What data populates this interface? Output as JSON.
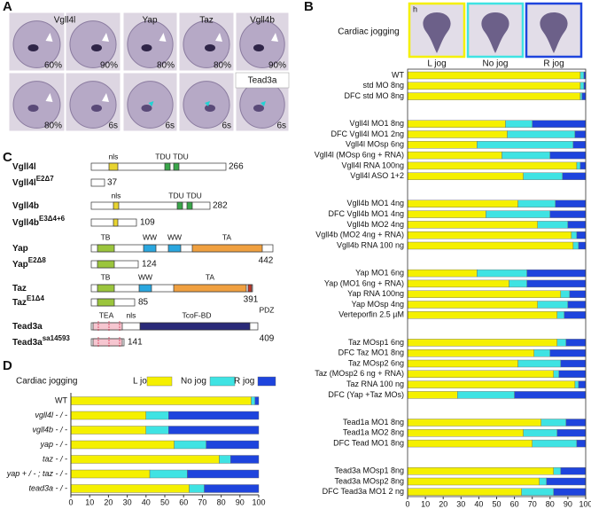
{
  "panel_labels": [
    "A",
    "B",
    "C",
    "D"
  ],
  "panel_a": {
    "headers": [
      "Vgll4l",
      "Yap",
      "Taz",
      "Vgll4b",
      "Tead3a"
    ],
    "annotations": [
      "60%",
      "90%",
      "80%",
      "80%",
      "90%",
      "80%",
      "6s",
      "6s",
      "6s",
      "6s"
    ]
  },
  "panel_c": {
    "rows": [
      {
        "name": "Vgll4l",
        "length": 266,
        "domains": [
          "nls",
          "TDU",
          "TDU"
        ]
      },
      {
        "name": "Vgll4l",
        "sup": "E2Δ7",
        "length": 37
      },
      {
        "name": "Vgll4b",
        "length": 282,
        "domains": [
          "nls",
          "TDU",
          "TDU"
        ]
      },
      {
        "name": "Vgll4b",
        "sup": "E3Δ4+6",
        "length": 109
      },
      {
        "name": "Yap",
        "length": 442,
        "domains": [
          "TB",
          "WW",
          "WW",
          "TA"
        ]
      },
      {
        "name": "Yap",
        "sup": "E2Δ8",
        "length": 124
      },
      {
        "name": "Taz",
        "length": 391,
        "domains": [
          "TB",
          "WW",
          "TA",
          "PDZ"
        ]
      },
      {
        "name": "Taz",
        "sup": "E1Δ4",
        "length": 85
      },
      {
        "name": "Tead3a",
        "length": 409,
        "domains": [
          "TEA",
          "nls",
          "TcoF-BD"
        ]
      },
      {
        "name": "Tead3a",
        "sup": "sa14593",
        "length": 141
      }
    ]
  },
  "chart_data": [
    {
      "type": "bar",
      "legend_title": "Cardiac jogging",
      "image_marker": "h",
      "categories": [
        "WT",
        "std MO 8ng",
        "DFC std MO 8ng",
        "Vgll4l MO1 8ng",
        "DFC Vgll4l MO1 2ng",
        "Vgll4l MOsp 6ng",
        "Vgll4l (MOsp 6ng + RNA)",
        "Vgll4l RNA 100ng",
        "Vgll4l ASO 1+2",
        "Vgll4b MO1 4ng",
        "DFC Vgll4b MO1 4ng",
        "Vgll4b MO2 4ng",
        "Vgll4b (MO2 4ng + RNA)",
        "Vgll4b RNA 100 ng",
        "Yap MO1 6ng",
        "Yap (MO1 6ng + RNA)",
        "Yap RNA 100ng",
        "Yap MOsp 4ng",
        "Verteporfin 2.5 µM",
        "Taz MOsp1 6ng",
        "DFC Taz MO1 8ng",
        "Taz MOsp2 6ng",
        "Taz (MOsp2 6 ng + RNA)",
        "Taz RNA 100 ng",
        "DFC (Yap +Taz MOs)",
        "Tead1a MO1 8ng",
        "Tead1a MO2 8ng",
        "DFC Tead MO1 8ng",
        "Tead3a MOsp1 8ng",
        "Tead3a MOsp2 8ng",
        "DFC Tead3a MO1 2 ng"
      ],
      "series": [
        {
          "name": "L jog",
          "color": "#f5f000",
          "values": [
            97,
            97,
            97,
            55,
            56,
            39,
            53,
            95,
            65,
            62,
            44,
            73,
            92,
            93,
            39,
            57,
            86,
            73,
            84,
            84,
            71,
            62,
            82,
            94,
            28,
            75,
            65,
            70,
            82,
            74,
            64
          ]
        },
        {
          "name": "No jog",
          "color": "#3fe3e3",
          "values": [
            2,
            2,
            1,
            15,
            38,
            54,
            27,
            2,
            22,
            21,
            36,
            17,
            3,
            3,
            28,
            10,
            5,
            17,
            4,
            5,
            9,
            24,
            3,
            2,
            32,
            14,
            19,
            25,
            4,
            4,
            18
          ]
        },
        {
          "name": "R jog",
          "color": "#1e44dd",
          "values": [
            1,
            1,
            2,
            30,
            6,
            7,
            20,
            3,
            13,
            17,
            20,
            10,
            5,
            4,
            33,
            33,
            9,
            10,
            12,
            11,
            20,
            14,
            15,
            4,
            40,
            11,
            16,
            5,
            14,
            22,
            18
          ]
        }
      ],
      "xlim": [
        0,
        100
      ],
      "xticks": [
        0,
        10,
        20,
        30,
        40,
        50,
        60,
        70,
        80,
        90,
        100
      ]
    },
    {
      "type": "bar",
      "legend_title": "Cardiac jogging",
      "categories": [
        "WT",
        "vgll4l - / -",
        "vgll4b - / -",
        "yap - / -",
        "taz - / -",
        "yap + / - ; taz - / -",
        "tead3a - / -"
      ],
      "series": [
        {
          "name": "L jog",
          "color": "#f5f000",
          "values": [
            96,
            40,
            40,
            55,
            79,
            42,
            63
          ]
        },
        {
          "name": "No jog",
          "color": "#3fe3e3",
          "values": [
            2,
            12,
            12,
            17,
            6,
            20,
            8
          ]
        },
        {
          "name": "R jog",
          "color": "#1e44dd",
          "values": [
            2,
            48,
            48,
            28,
            15,
            38,
            29
          ]
        }
      ],
      "xlim": [
        0,
        100
      ],
      "xticks": [
        0,
        10,
        20,
        30,
        40,
        50,
        60,
        70,
        80,
        90,
        100
      ]
    }
  ]
}
